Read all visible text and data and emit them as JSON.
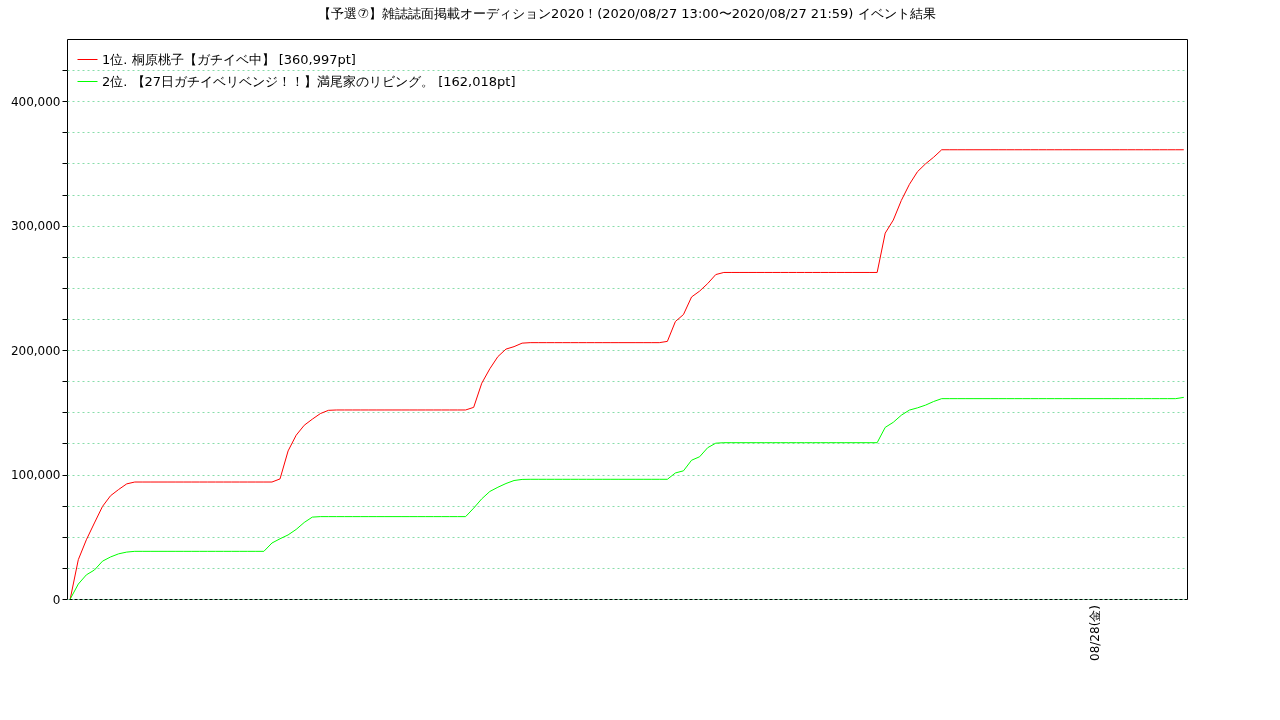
{
  "chart_data": {
    "type": "line",
    "title": "【予選⑦】雑誌誌面掲載オーディション2020！(2020/08/27 13:00〜2020/08/27 21:59)          イベント結果",
    "annotations": [
      "08/28(金)"
    ],
    "categories": [
      null,
      null,
      null,
      null,
      null,
      null,
      null,
      null,
      null,
      null,
      null,
      null,
      null,
      null,
      null,
      null,
      null,
      null,
      null,
      null,
      null,
      null,
      null,
      null,
      null,
      null,
      null,
      null,
      null,
      null,
      null,
      null,
      null,
      null,
      null,
      null,
      null,
      null,
      null,
      null,
      null,
      null,
      null,
      null,
      null,
      null,
      null,
      null,
      null,
      null,
      null,
      null,
      null,
      null,
      null,
      null,
      null,
      null,
      null,
      null,
      null,
      null,
      null,
      null,
      null,
      null,
      null,
      null,
      null,
      null,
      null,
      null,
      null,
      null,
      null,
      null,
      null,
      null,
      null,
      null,
      null,
      null,
      null,
      null,
      null,
      null,
      null,
      null,
      null,
      null,
      null,
      null,
      null,
      null,
      null,
      null,
      null,
      null,
      null,
      null,
      null,
      null,
      null,
      null,
      null,
      null,
      null,
      null,
      null,
      null,
      null,
      null,
      null,
      null,
      null,
      null,
      null,
      null,
      null,
      null,
      null,
      null,
      null,
      null,
      null,
      null,
      null,
      null,
      null,
      null,
      null,
      null,
      null,
      null,
      null,
      null,
      null,
      null,
      null
    ],
    "ylim": [
      0,
      450000
    ],
    "yticks": [
      {
        "value": 0,
        "label": "0"
      },
      {
        "value": 25000,
        "label": null
      },
      {
        "value": 50000,
        "label": null
      },
      {
        "value": 75000,
        "label": null
      },
      {
        "value": 100000,
        "label": "100,000"
      },
      {
        "value": 125000,
        "label": null
      },
      {
        "value": 150000,
        "label": null
      },
      {
        "value": 175000,
        "label": null
      },
      {
        "value": 200000,
        "label": "200,000"
      },
      {
        "value": 225000,
        "label": null
      },
      {
        "value": 250000,
        "label": null
      },
      {
        "value": 275000,
        "label": null
      },
      {
        "value": 300000,
        "label": "300,000"
      },
      {
        "value": 325000,
        "label": null
      },
      {
        "value": 350000,
        "label": null
      },
      {
        "value": 375000,
        "label": null
      },
      {
        "value": 400000,
        "label": "400,000"
      },
      {
        "value": 425000,
        "label": null
      }
    ],
    "grid": "y",
    "legend": "top left",
    "marker": "none",
    "line_style": "solid",
    "tick_labels": "y",
    "series": [
      {
        "name": "1位. 桐原桃子【ガチイベ中】 [360,997pt]",
        "color": "#ff0000",
        "values": [
          0,
          31600,
          47600,
          61100,
          74400,
          83000,
          88000,
          92500,
          94000,
          94000,
          94000,
          94000,
          94000,
          94000,
          94000,
          94000,
          94000,
          94000,
          94000,
          94000,
          94000,
          94000,
          94000,
          94000,
          94000,
          94000,
          96500,
          119000,
          131600,
          139600,
          144500,
          149000,
          151600,
          151900,
          151900,
          151900,
          151900,
          151900,
          151900,
          151900,
          151900,
          151900,
          151900,
          151900,
          151900,
          151900,
          151900,
          151900,
          151900,
          151900,
          154000,
          173400,
          185000,
          194800,
          200800,
          202800,
          205600,
          206000,
          206000,
          206000,
          206000,
          206000,
          206000,
          206000,
          206000,
          206000,
          206000,
          206000,
          206000,
          206000,
          206000,
          206000,
          206000,
          206000,
          207000,
          223000,
          228600,
          242700,
          247400,
          253500,
          260700,
          262400,
          262400,
          262400,
          262400,
          262400,
          262400,
          262400,
          262400,
          262400,
          262400,
          262400,
          262400,
          262400,
          262400,
          262400,
          262400,
          262400,
          262400,
          262400,
          262400,
          294000,
          304500,
          320300,
          333200,
          343400,
          349700,
          355000,
          361000,
          361000,
          361000,
          361000,
          361000,
          361000,
          361000,
          361000,
          361000,
          361000,
          361000,
          361000,
          361000,
          361000,
          361000,
          361000,
          361000,
          361000,
          361000,
          361000,
          361000,
          361000,
          361000,
          361000,
          361000,
          361000,
          361000,
          361000,
          361000,
          361000,
          360997
        ]
      },
      {
        "name": "2位. 【27日ガチイベリベンジ！！】満尾家のリビング。 [162,018pt]",
        "color": "#00ff00",
        "values": [
          0,
          12000,
          19400,
          23300,
          30400,
          33800,
          36300,
          37700,
          38300,
          38300,
          38300,
          38300,
          38300,
          38300,
          38300,
          38300,
          38300,
          38300,
          38300,
          38300,
          38300,
          38300,
          38300,
          38300,
          38300,
          45000,
          48400,
          51500,
          55900,
          61500,
          65800,
          66200,
          66200,
          66200,
          66200,
          66200,
          66200,
          66200,
          66200,
          66200,
          66200,
          66200,
          66200,
          66200,
          66200,
          66200,
          66200,
          66200,
          66200,
          66200,
          73000,
          80500,
          86400,
          89800,
          92800,
          95200,
          96100,
          96200,
          96200,
          96200,
          96200,
          96200,
          96200,
          96200,
          96200,
          96200,
          96200,
          96200,
          96200,
          96200,
          96200,
          96200,
          96200,
          96200,
          96200,
          101300,
          103000,
          111500,
          114300,
          121600,
          125200,
          125600,
          125600,
          125600,
          125600,
          125600,
          125600,
          125600,
          125600,
          125600,
          125600,
          125600,
          125600,
          125600,
          125600,
          125600,
          125600,
          125600,
          125600,
          125600,
          125600,
          137900,
          142000,
          147700,
          151800,
          153600,
          155800,
          158700,
          161000,
          161000,
          161000,
          161000,
          161000,
          161000,
          161000,
          161000,
          161000,
          161000,
          161000,
          161000,
          161000,
          161000,
          161000,
          161000,
          161000,
          161000,
          161000,
          161000,
          161000,
          161000,
          161000,
          161000,
          161000,
          161000,
          161000,
          161000,
          161000,
          161000,
          162018
        ]
      }
    ]
  }
}
